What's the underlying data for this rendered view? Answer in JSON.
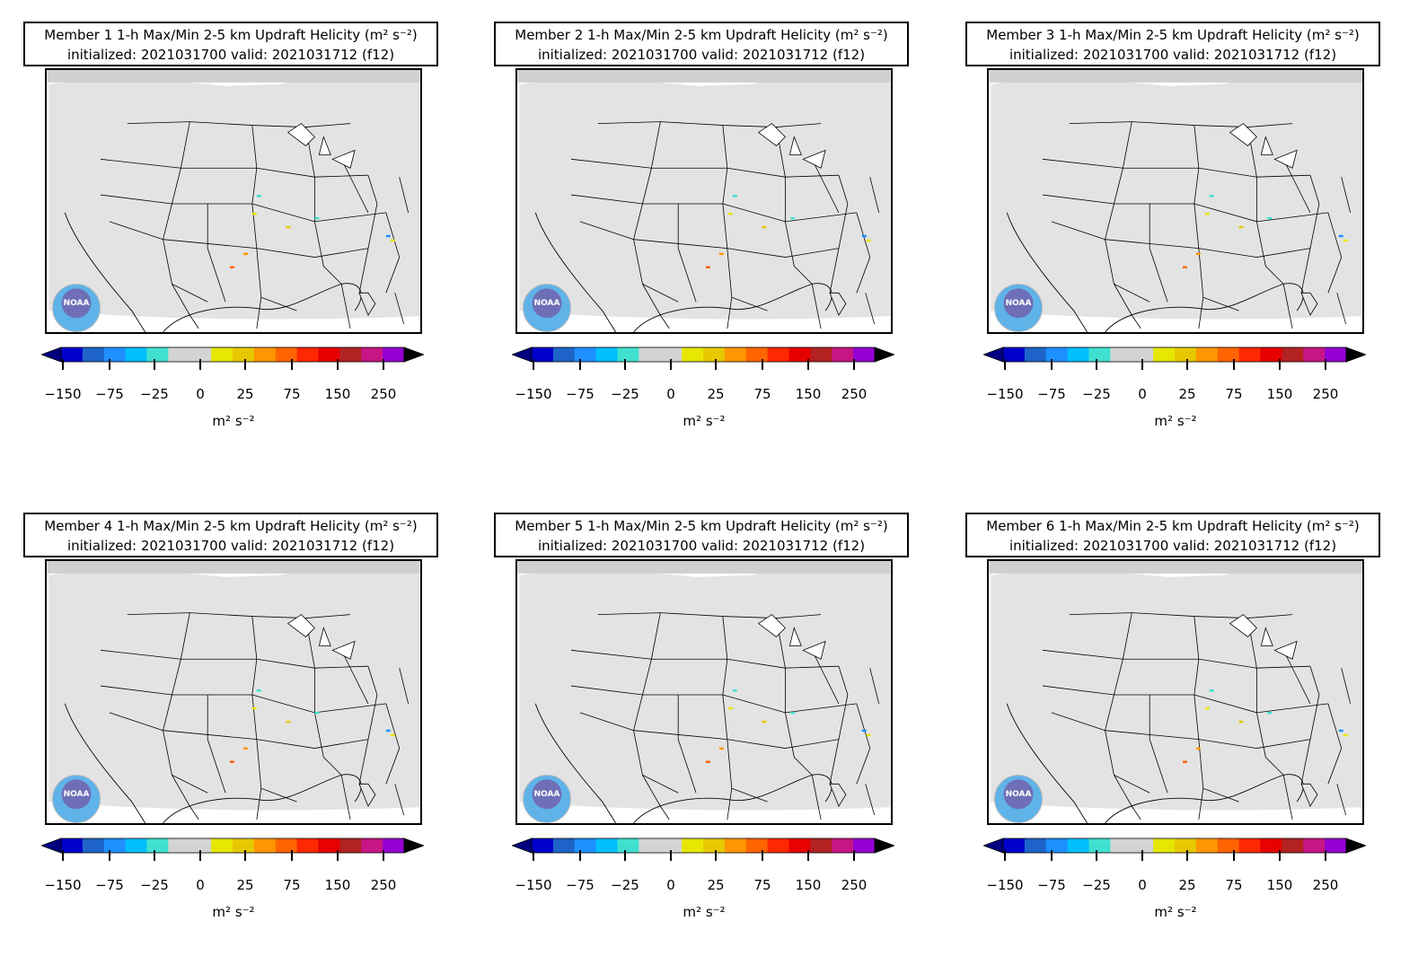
{
  "panels": [
    {
      "member": "Member 1",
      "title": "Member 1 1-h Max/Min 2-5 km Updraft Helicity",
      "unit_label": "m² s⁻²",
      "subtitle": "initialized: 2021031700 valid: 2021031712 (f12)"
    },
    {
      "member": "Member 2",
      "title": "Member 2 1-h Max/Min 2-5 km Updraft Helicity",
      "unit_label": "m² s⁻²",
      "subtitle": "initialized: 2021031700 valid: 2021031712 (f12)"
    },
    {
      "member": "Member 3",
      "title": "Member 3 1-h Max/Min 2-5 km Updraft Helicity",
      "unit_label": "m² s⁻²",
      "subtitle": "initialized: 2021031700 valid: 2021031712 (f12)"
    },
    {
      "member": "Member 4",
      "title": "Member 4 1-h Max/Min 2-5 km Updraft Helicity",
      "unit_label": "m² s⁻²",
      "subtitle": "initialized: 2021031700 valid: 2021031712 (f12)"
    },
    {
      "member": "Member 5",
      "title": "Member 5 1-h Max/Min 2-5 km Updraft Helicity",
      "unit_label": "m² s⁻²",
      "subtitle": "initialized: 2021031700 valid: 2021031712 (f12)"
    },
    {
      "member": "Member 6",
      "title": "Member 6 1-h Max/Min 2-5 km Updraft Helicity",
      "unit_label": "m² s⁻²",
      "subtitle": "initialized: 2021031700 valid: 2021031712 (f12)"
    }
  ],
  "colorbar": {
    "tick_labels": [
      "−150",
      "−75",
      "−25",
      "0",
      "25",
      "75",
      "150",
      "250"
    ],
    "unit_label": "m² s⁻²",
    "colors": [
      "#0000cd",
      "#1e64c8",
      "#1e90ff",
      "#00bfff",
      "#40e0d0",
      "#d3d3d3",
      "#d3d3d3",
      "#e6e600",
      "#e6c800",
      "#ff9600",
      "#ff6400",
      "#ff2800",
      "#e60000",
      "#b22222",
      "#c71585",
      "#9400d3"
    ],
    "extend_low_color": "#000080",
    "extend_high_color": "#000000"
  },
  "logo": {
    "name": "noaa-logo",
    "text": "NOAA"
  }
}
